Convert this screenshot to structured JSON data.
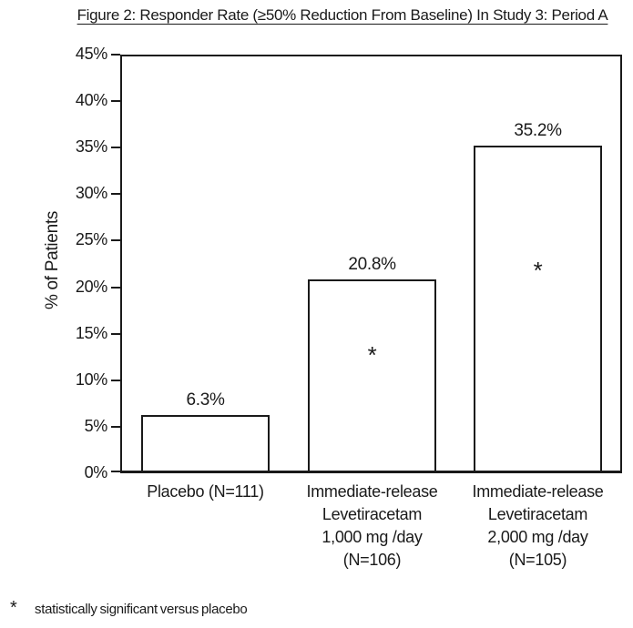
{
  "page": {
    "background": "#ffffff",
    "ink": "#1a1a1a"
  },
  "title": "Figure 2: Responder Rate (≥50% Reduction From Baseline) In Study 3: Period A",
  "chart_data": {
    "type": "bar",
    "title": "Figure 2: Responder Rate (≥50% Reduction From Baseline) In Study 3: Period A",
    "xlabel": "",
    "ylabel": "% of Patients",
    "ylim": [
      0,
      45
    ],
    "ytick_step": 5,
    "ytick_labels": [
      "0%",
      "5%",
      "10%",
      "15%",
      "20%",
      "25%",
      "30%",
      "35%",
      "40%",
      "45%"
    ],
    "grid": false,
    "legend_position": "none",
    "bar_fill": "#ffffff",
    "bar_border": "#1a1a1a",
    "categories": [
      {
        "lines": [
          "Placebo (N=111)"
        ]
      },
      {
        "lines": [
          "Immediate-release",
          "Levetiracetam",
          "1,000 mg /day",
          "(N=106)"
        ]
      },
      {
        "lines": [
          "Immediate-release",
          "Levetiracetam",
          "2,000 mg /day",
          "(N=105)"
        ]
      }
    ],
    "values": [
      6.3,
      20.8,
      35.2
    ],
    "value_labels": [
      "6.3%",
      "20.8%",
      "35.2%"
    ],
    "statistically_significant": [
      false,
      true,
      true
    ],
    "significance_marker": "*"
  },
  "footnote": {
    "marker": "*",
    "text": "statistically significant versus placebo"
  }
}
